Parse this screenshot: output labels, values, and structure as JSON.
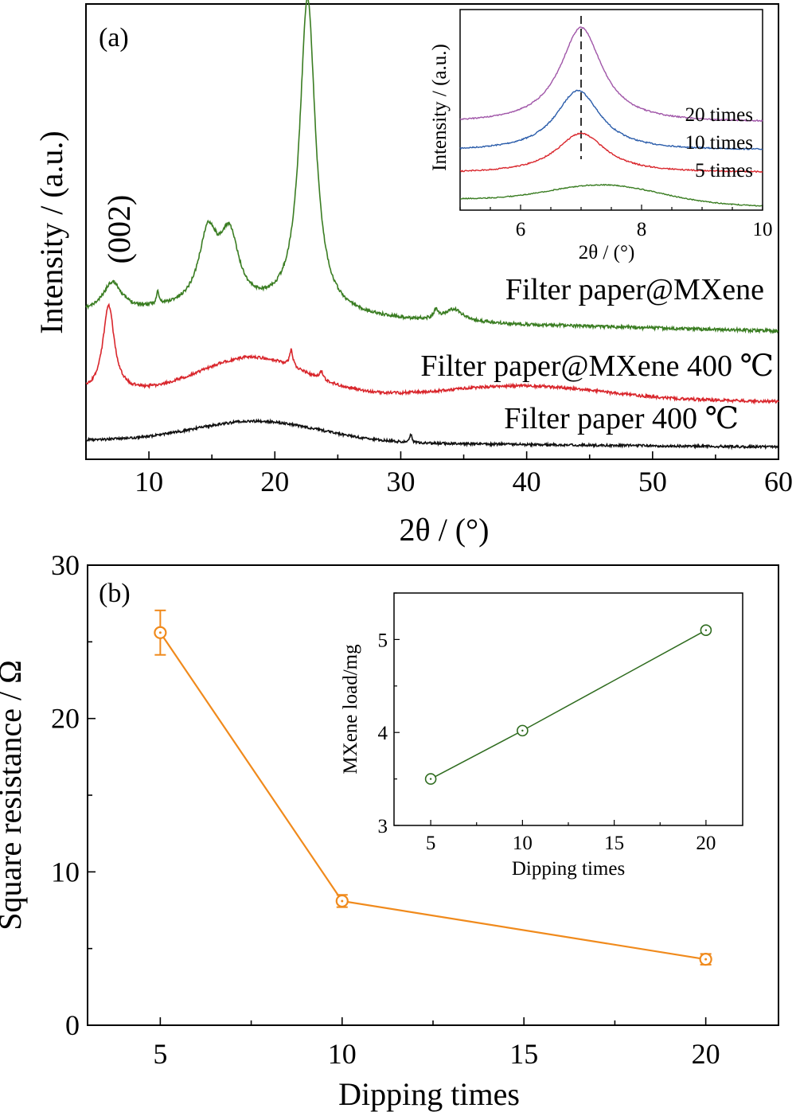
{
  "chart_data": [
    {
      "panel": "(a)",
      "type": "line",
      "xlabel": "2θ / (°)",
      "ylabel": "Intensity / (a.u.)",
      "xlim": [
        5,
        60
      ],
      "xticks": [
        "10",
        "20",
        "30",
        "40",
        "50",
        "60"
      ],
      "peak_annotation": "(002)",
      "series": [
        {
          "name": "Filter paper@MXene",
          "color": "#3a7d22",
          "peaks": [
            {
              "x": 7.1,
              "rel_height": 0.07
            },
            {
              "x": 10.7,
              "rel_height": 0.03
            },
            {
              "x": 14.7,
              "rel_height": 0.17
            },
            {
              "x": 16.4,
              "rel_height": 0.16
            },
            {
              "x": 22.6,
              "rel_height": 0.76
            },
            {
              "x": 32.8,
              "rel_height": 0.02
            },
            {
              "x": 34.2,
              "rel_height": 0.03
            }
          ]
        },
        {
          "name": "Filter paper@MXene 400 ℃",
          "color": "#d9262c",
          "peaks": [
            {
              "x": 6.8,
              "rel_height": 0.21
            },
            {
              "x": 18.3,
              "rel_height": 0.09
            },
            {
              "x": 21.3,
              "rel_height": 0.04
            },
            {
              "x": 23.7,
              "rel_height": 0.02
            }
          ]
        },
        {
          "name": "Filter paper 400 ℃",
          "color": "#111111",
          "peaks": [
            {
              "x": 18.6,
              "rel_height": 0.05
            },
            {
              "x": 30.8,
              "rel_height": 0.02
            }
          ]
        }
      ],
      "inset": {
        "type": "line",
        "xlabel": "2θ / (°)",
        "ylabel": "Intensity / (a.u.)",
        "xlim": [
          5,
          10
        ],
        "xticks": [
          "6",
          "8",
          "10"
        ],
        "reference_line_x": 7.0,
        "series": [
          {
            "name": "20 times",
            "color": "#a056a8",
            "peak_x": 7.0
          },
          {
            "name": "10 times",
            "color": "#2a5caa",
            "peak_x": 6.95
          },
          {
            "name": "5 times",
            "color": "#d9262c",
            "peak_x": 7.0
          },
          {
            "name": "",
            "color": "#3a7d22",
            "peak_x": 7.4
          }
        ]
      }
    },
    {
      "panel": "(b)",
      "type": "line",
      "xlabel": "Dipping times",
      "ylabel": "Square resistance / Ω",
      "xlim": [
        3,
        22
      ],
      "ylim": [
        0,
        30
      ],
      "xticks": [
        "5",
        "10",
        "15",
        "20"
      ],
      "yticks": [
        "0",
        "10",
        "20",
        "30"
      ],
      "color": "#f08a1c",
      "series": [
        {
          "x": [
            5,
            10,
            20
          ],
          "values": [
            25.6,
            8.1,
            4.3
          ],
          "errors": [
            1.45,
            0.4,
            0.35
          ]
        }
      ],
      "inset": {
        "type": "line",
        "xlabel": "Dipping times",
        "ylabel": "MXene load/mg",
        "xlim": [
          3,
          22
        ],
        "ylim": [
          3,
          5.5
        ],
        "xticks": [
          "5",
          "10",
          "15",
          "20"
        ],
        "yticks": [
          "3",
          "4",
          "5"
        ],
        "color": "#2e6b1e",
        "series": [
          {
            "x": [
              5,
              10,
              20
            ],
            "values": [
              3.5,
              4.02,
              5.1
            ]
          }
        ]
      }
    }
  ]
}
